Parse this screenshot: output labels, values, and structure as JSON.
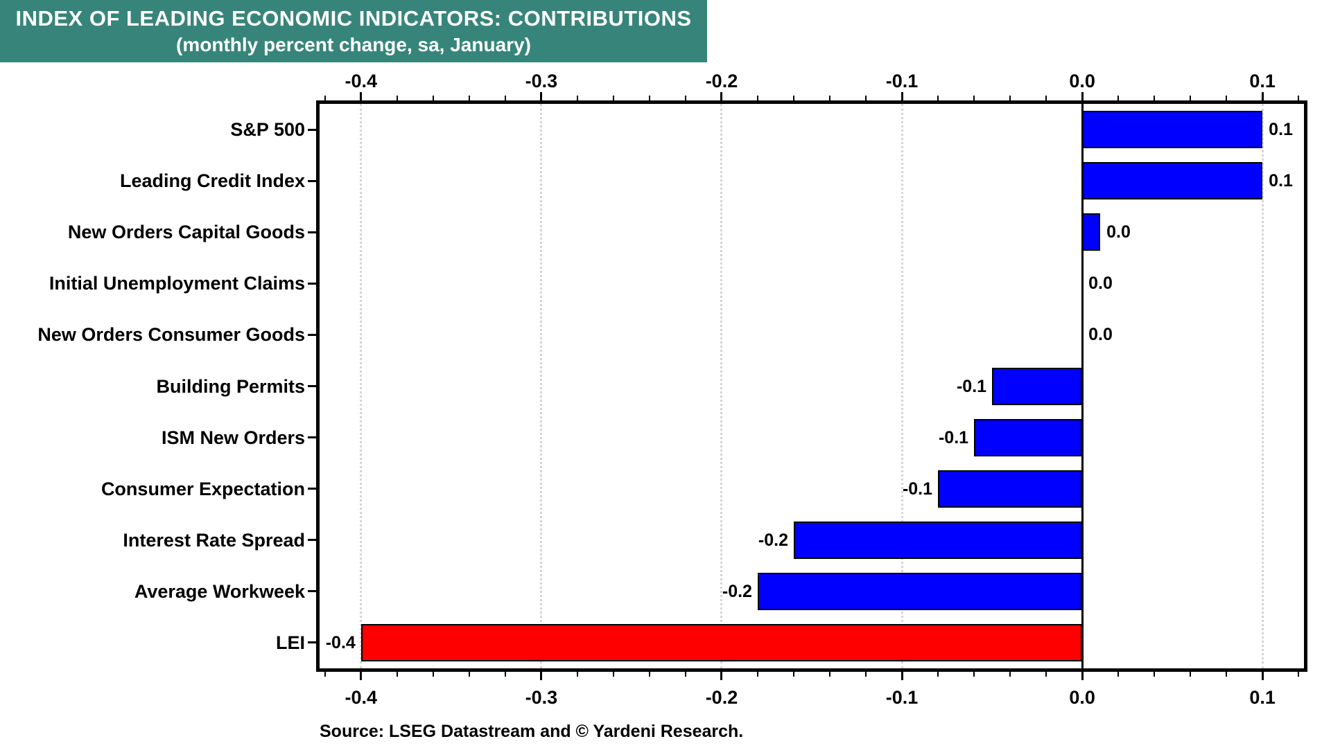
{
  "chart_data": {
    "type": "bar",
    "orientation": "horizontal",
    "title": "INDEX OF LEADING ECONOMIC INDICATORS: CONTRIBUTIONS",
    "subtitle": "(monthly percent change, sa, January)",
    "source": "Source: LSEG Datastream and © Yardeni Research.",
    "categories": [
      "S&P 500",
      "Leading Credit Index",
      "New Orders Capital Goods",
      "Initial Unemployment Claims",
      "New Orders Consumer Goods",
      "Building Permits",
      "ISM New Orders",
      "Consumer Expectation",
      "Interest Rate Spread",
      "Average Workweek",
      "LEI"
    ],
    "values": [
      0.1,
      0.1,
      0.01,
      0.0,
      0.0,
      -0.05,
      -0.06,
      -0.08,
      -0.16,
      -0.18,
      -0.4
    ],
    "bar_labels": [
      "0.1",
      "0.1",
      "0.0",
      "0.0",
      "0.0",
      "-0.1",
      "-0.1",
      "-0.1",
      "-0.2",
      "-0.2",
      "-0.4"
    ],
    "bar_colors": [
      "#0000ff",
      "#0000ff",
      "#0000ff",
      "#0000ff",
      "#0000ff",
      "#0000ff",
      "#0000ff",
      "#0000ff",
      "#0000ff",
      "#0000ff",
      "#ff0000"
    ],
    "xlim": [
      -0.423,
      0.123
    ],
    "x_major_ticks": [
      -0.4,
      -0.3,
      -0.2,
      -0.1,
      0.0,
      0.1
    ],
    "x_tick_labels": [
      "-0.4",
      "-0.3",
      "-0.2",
      "-0.1",
      "0.0",
      "0.1"
    ],
    "x_minor_tick_step": 0.02,
    "grid": "vertical dotted gridlines at major ticks, solid black line at zero",
    "legend": "none",
    "colors": {
      "banner_bg": "#37857a",
      "banner_text": "#ffffff",
      "positive_bar": "#0000ff",
      "negative_total_bar": "#ff0000",
      "gridline": "#d4d4d4",
      "axis": "#000000"
    }
  }
}
